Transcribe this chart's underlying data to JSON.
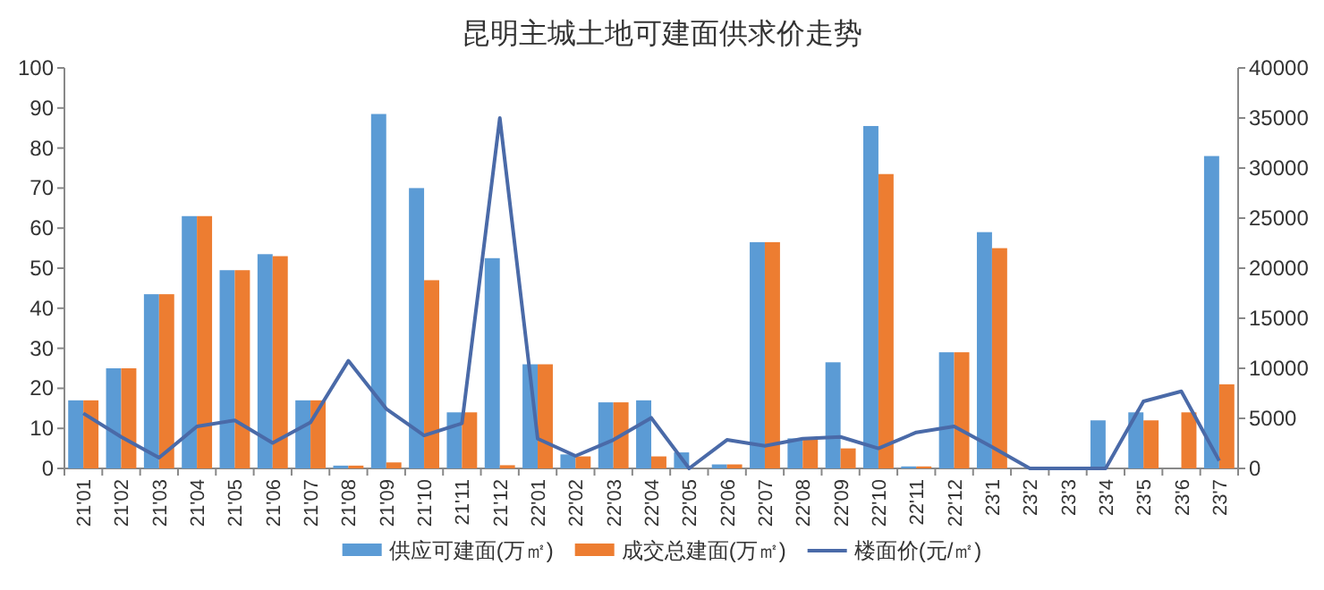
{
  "chart_data": {
    "type": "bar",
    "title": "昆明主城土地可建面供求价走势",
    "categories": [
      "21'01",
      "21'02",
      "21'03",
      "21'04",
      "21'05",
      "21'06",
      "21'07",
      "21'08",
      "21'09",
      "21'10",
      "21'11",
      "21'12",
      "22'01",
      "22'02",
      "22'03",
      "22'04",
      "22'05",
      "22'06",
      "22'07",
      "22'08",
      "22'09",
      "22'10",
      "22'11",
      "22'12",
      "23'1",
      "23'2",
      "23'3",
      "23'4",
      "23'5",
      "23'6",
      "23'7"
    ],
    "series": [
      {
        "name": "供应可建面(万㎡)",
        "color": "#5b9bd5",
        "values": [
          17,
          25,
          43.5,
          63,
          49.5,
          53.5,
          17,
          0.7,
          88.5,
          70,
          14,
          52.5,
          26,
          3.5,
          16.5,
          17,
          4,
          1,
          56.5,
          7.5,
          26.5,
          85.5,
          0.5,
          29,
          59,
          0,
          0.3,
          12,
          14,
          0,
          78
        ]
      },
      {
        "name": "成交总建面(万㎡)",
        "color": "#ed7d31",
        "values": [
          17,
          25,
          43.5,
          63,
          49.5,
          53,
          17,
          0.7,
          1.5,
          47,
          14,
          0.8,
          26,
          3,
          16.5,
          3,
          0,
          1,
          56.5,
          7.5,
          5,
          73.5,
          0.5,
          29,
          55,
          0,
          0,
          0,
          12,
          14,
          21
        ]
      },
      {
        "name": "楼面价(元/㎡)",
        "color": "#4a6aa8",
        "type": "line",
        "axis": "y2",
        "values": [
          5500,
          3150,
          1070,
          4200,
          4800,
          2550,
          4600,
          10750,
          5950,
          3300,
          4500,
          35000,
          2970,
          1250,
          2850,
          5050,
          0,
          2850,
          2250,
          2970,
          3150,
          2000,
          3600,
          4200,
          2140,
          0,
          0,
          0,
          6700,
          7700,
          770
        ]
      }
    ],
    "ylim": [
      0,
      100
    ],
    "yticks": [
      0,
      10,
      20,
      30,
      40,
      50,
      60,
      70,
      80,
      90,
      100
    ],
    "y2lim": [
      0,
      40000
    ],
    "y2ticks": [
      0,
      5000,
      10000,
      15000,
      20000,
      25000,
      30000,
      35000,
      40000
    ],
    "legend": "bottom",
    "grid": false
  }
}
